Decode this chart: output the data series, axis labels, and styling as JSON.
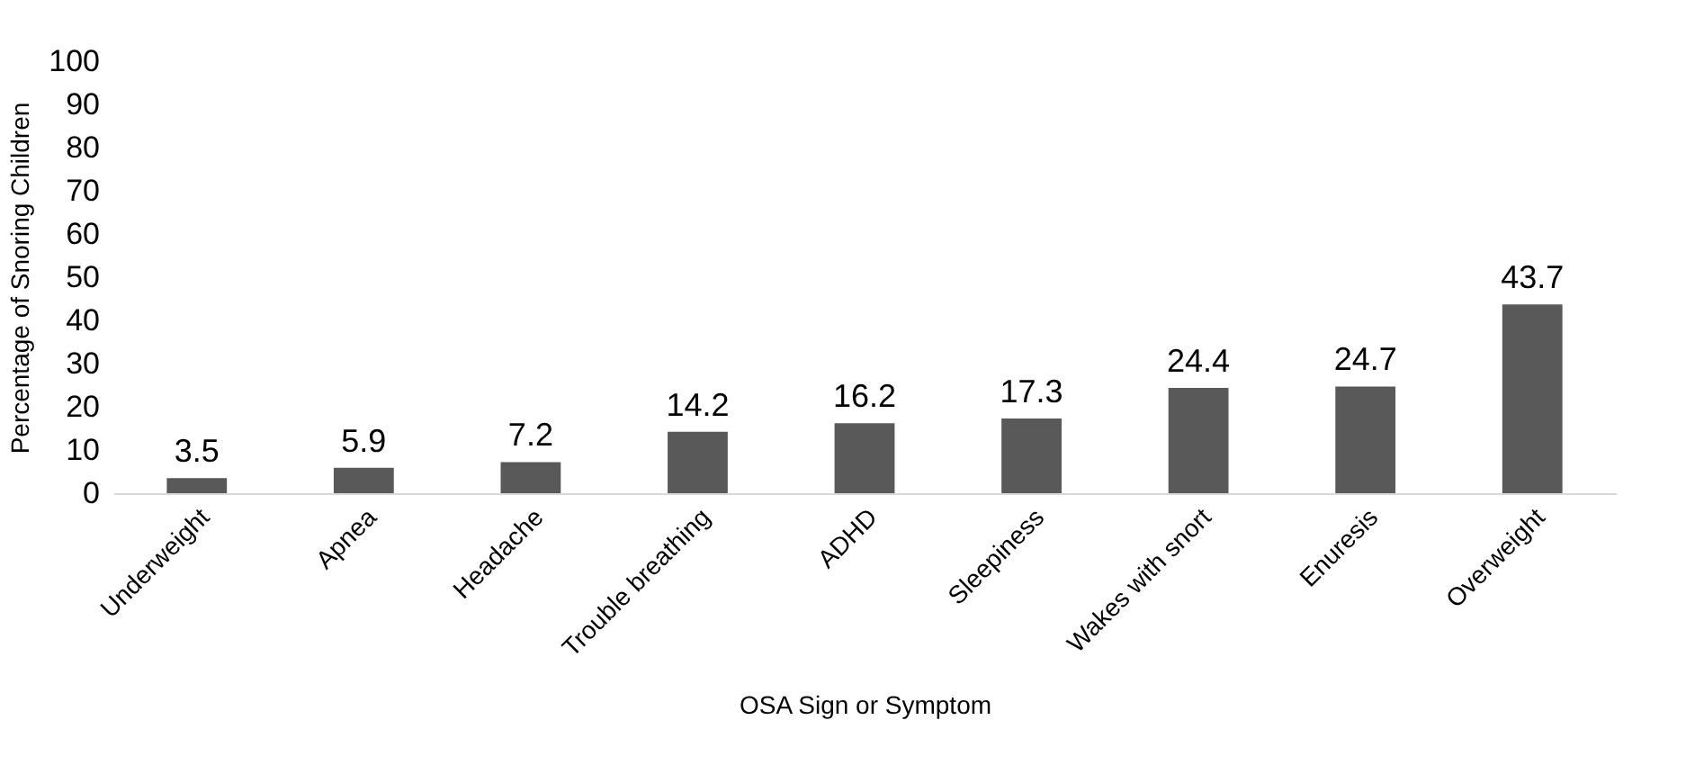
{
  "chart_data": {
    "type": "bar",
    "xlabel": "OSA Sign or Symptom",
    "ylabel": "Percentage of Snoring Children",
    "categories": [
      "Underweight",
      "Apnea",
      "Headache",
      "Trouble breathing",
      "ADHD",
      "Sleepiness",
      "Wakes with snort",
      "Enuresis",
      "Overweight"
    ],
    "values": [
      3.5,
      5.9,
      7.2,
      14.2,
      16.2,
      17.3,
      24.4,
      24.7,
      43.7
    ],
    "color": "#595959",
    "ylim": [
      0,
      100
    ],
    "yticks": [
      0,
      10,
      20,
      30,
      40,
      50,
      60,
      70,
      80,
      90,
      100
    ],
    "grid": false,
    "data_labels": true
  }
}
